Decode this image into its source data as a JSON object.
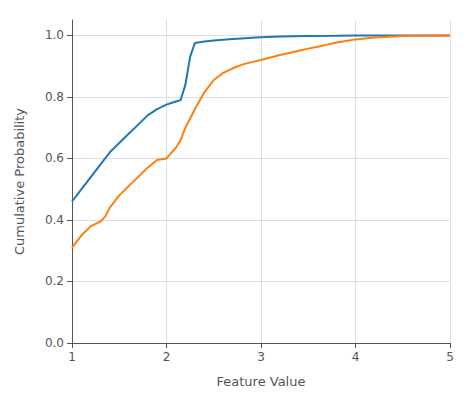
{
  "chart_data": {
    "type": "line",
    "xlabel": "Feature Value",
    "ylabel": "Cumulative Probability",
    "xlim": [
      1,
      5
    ],
    "ylim": [
      0.0,
      1.05
    ],
    "xticks": [
      1,
      2,
      3,
      4,
      5
    ],
    "yticks": [
      {
        "value": 0.0,
        "label": "0.0"
      },
      0.2,
      0.4,
      0.6,
      0.8,
      {
        "value": 1.0,
        "label": "1.0"
      }
    ],
    "grid": true,
    "series": [
      {
        "color": "#1f77b4",
        "x": [
          1.0,
          1.05,
          1.1,
          1.15,
          1.2,
          1.3,
          1.4,
          1.5,
          1.6,
          1.7,
          1.8,
          1.9,
          2.0,
          2.05,
          2.1,
          2.15,
          2.2,
          2.25,
          2.3,
          2.4,
          2.5,
          2.6,
          2.7,
          2.8,
          2.9,
          3.0,
          3.2,
          3.5,
          3.8,
          4.0,
          4.5,
          5.0
        ],
        "values": [
          0.46,
          0.48,
          0.5,
          0.52,
          0.54,
          0.58,
          0.62,
          0.65,
          0.68,
          0.71,
          0.74,
          0.76,
          0.775,
          0.78,
          0.785,
          0.79,
          0.84,
          0.93,
          0.975,
          0.98,
          0.983,
          0.986,
          0.988,
          0.99,
          0.992,
          0.994,
          0.996,
          0.998,
          0.999,
          1.0,
          1.0,
          1.0
        ]
      },
      {
        "color": "#ff7f0e",
        "x": [
          1.0,
          1.1,
          1.2,
          1.3,
          1.35,
          1.4,
          1.5,
          1.6,
          1.7,
          1.8,
          1.9,
          2.0,
          2.1,
          2.15,
          2.2,
          2.3,
          2.4,
          2.5,
          2.6,
          2.7,
          2.8,
          2.9,
          3.0,
          3.1,
          3.2,
          3.3,
          3.4,
          3.5,
          3.6,
          3.7,
          3.8,
          3.9,
          4.0,
          4.2,
          4.5,
          5.0
        ],
        "values": [
          0.31,
          0.35,
          0.38,
          0.395,
          0.41,
          0.44,
          0.48,
          0.51,
          0.54,
          0.57,
          0.595,
          0.6,
          0.635,
          0.66,
          0.7,
          0.76,
          0.815,
          0.855,
          0.878,
          0.893,
          0.905,
          0.913,
          0.92,
          0.928,
          0.936,
          0.943,
          0.95,
          0.957,
          0.963,
          0.97,
          0.977,
          0.982,
          0.987,
          0.993,
          0.998,
          1.0
        ]
      }
    ]
  }
}
